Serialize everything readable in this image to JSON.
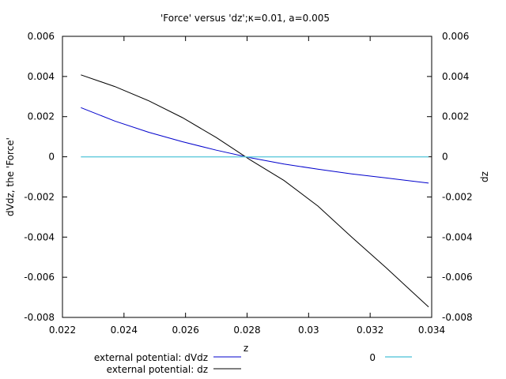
{
  "chart_data": {
    "type": "line",
    "title": "'Force' versus 'dz';κ=0.01, a=0.005",
    "xlabel": "z",
    "ylabel": "dVdz, the 'Force'",
    "y2label": "dz",
    "xlim": [
      0.022,
      0.034
    ],
    "ylim": [
      -0.008,
      0.006
    ],
    "y2lim": [
      -0.008,
      0.006
    ],
    "xticks": [
      0.022,
      0.024,
      0.026,
      0.028,
      0.03,
      0.032,
      0.034
    ],
    "xtick_labels": [
      "0.022",
      "0.024",
      "0.026",
      "0.028",
      "0.03",
      "0.032",
      "0.034"
    ],
    "yticks": [
      0.006,
      0.004,
      0.002,
      0,
      -0.002,
      -0.004,
      -0.006,
      -0.008
    ],
    "ytick_labels": [
      "0.006",
      "0.004",
      "0.002",
      "0",
      "-0.002",
      "-0.004",
      "-0.006",
      "-0.008"
    ],
    "y2tick_labels": [
      "0.006",
      "0.004",
      "0.002",
      "0",
      "-0.002",
      "-0.004",
      "-0.006",
      "-0.008"
    ],
    "grid": false,
    "legend_position": "bottom",
    "series": [
      {
        "name": "external potential: dVdz",
        "color": "#0000cc",
        "x": [
          0.0226,
          0.0237,
          0.0248,
          0.0259,
          0.027,
          0.0281,
          0.0292,
          0.0303,
          0.0314,
          0.0325,
          0.0339
        ],
        "y": [
          0.00245,
          0.00178,
          0.00122,
          0.00075,
          0.00033,
          -5e-05,
          -0.00036,
          -0.00062,
          -0.00085,
          -0.00105,
          -0.00131
        ]
      },
      {
        "name": "external potential: dz",
        "color": "#000000",
        "x": [
          0.0226,
          0.0237,
          0.0248,
          0.0259,
          0.027,
          0.0281,
          0.0292,
          0.0303,
          0.0314,
          0.0325,
          0.0339
        ],
        "y": [
          0.00408,
          0.0035,
          0.00279,
          0.00195,
          0.00096,
          -0.00015,
          -0.00118,
          -0.00245,
          -0.004,
          -0.0055,
          -0.00748
        ]
      },
      {
        "name": "0",
        "color": "#66ccdd",
        "x": [
          0.0226,
          0.0339
        ],
        "y": [
          0,
          0
        ]
      }
    ]
  }
}
